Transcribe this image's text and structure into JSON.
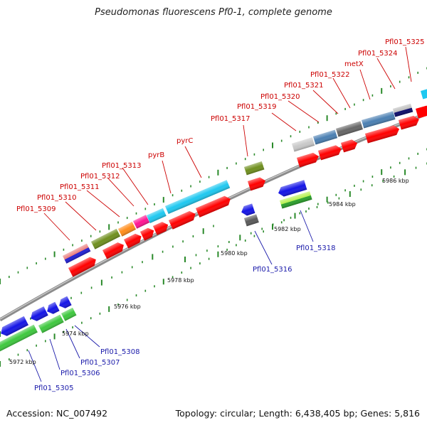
{
  "title": "Pseudomonas fluorescens Pf0-1, complete genome",
  "footer": {
    "accession": "Accession: NC_007492",
    "topology": "Topology: circular; Length: 6,438,405 bp; Genes: 5,816"
  },
  "ticks": [
    "5972 kbp",
    "5974 kbp",
    "5976 kbp",
    "5978 kbp",
    "5980 kbp",
    "5982 kbp",
    "5984 kbp",
    "5986 kbp"
  ],
  "upper_labels": [
    "Pfl01_5309",
    "Pfl01_5310",
    "Pfl01_5311",
    "Pfl01_5312",
    "Pfl01_5313",
    "pyrB",
    "pyrC",
    "Pfl01_5317",
    "Pfl01_5319",
    "Pfl01_5320",
    "Pfl01_5321",
    "Pfl01_5322",
    "metX",
    "Pfl01_5324",
    "Pfl01_5325"
  ],
  "lower_labels": [
    "Pfl01_5305",
    "Pfl01_5306",
    "Pfl01_5307",
    "Pfl01_5308",
    "Pfl01_5316",
    "Pfl01_5318"
  ],
  "colors": {
    "cds_red": "#ff0000",
    "upper_label": "#cc0000",
    "lower_label": "#1a1aaa",
    "backbone": "#999999",
    "tick_dash": "#2a8a2a"
  }
}
